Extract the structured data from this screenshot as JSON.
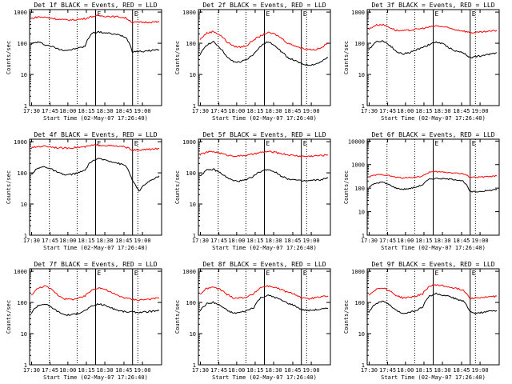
{
  "chart_data": [
    {
      "type": "line",
      "title": "Det 1f BLACK = Events, RED = LLD",
      "ylabel": "Counts/sec",
      "xlabel": "Start Time (02-May-07 17:26:40)",
      "x_tick_labels": [
        "17:30",
        "17:45",
        "18:00",
        "18:15",
        "18:30",
        "18:45",
        "19:00"
      ],
      "y_tick_labels": [
        "1",
        "10",
        "100",
        "1000"
      ],
      "ylim": [
        1,
        1200
      ],
      "y_scale": "log",
      "marker_labels": [
        "E",
        "E"
      ],
      "series": [
        {
          "color": "#000000",
          "values": [
            95,
            110,
            90,
            80,
            65,
            60,
            62,
            70,
            80,
            210,
            230,
            215,
            200,
            185,
            160,
            55,
            55,
            55,
            60,
            62
          ]
        },
        {
          "color": "#ff0000",
          "values": [
            620,
            700,
            680,
            640,
            590,
            560,
            560,
            580,
            620,
            720,
            760,
            740,
            720,
            700,
            650,
            470,
            470,
            470,
            480,
            480
          ]
        }
      ]
    },
    {
      "type": "line",
      "title": "Det 2f BLACK = Events, RED = LLD",
      "ylabel": "Counts/sec",
      "xlabel": "Start Time (02-May-07 17:26:40)",
      "x_tick_labels": [
        "17:30",
        "17:45",
        "18:00",
        "18:15",
        "18:30",
        "18:45",
        "19:00"
      ],
      "y_tick_labels": [
        "1",
        "10",
        "100",
        "1000"
      ],
      "ylim": [
        1,
        1200
      ],
      "y_scale": "log",
      "marker_labels": [
        "E",
        "E"
      ],
      "series": [
        {
          "color": "#000000",
          "values": [
            40,
            90,
            110,
            70,
            35,
            25,
            25,
            30,
            45,
            80,
            110,
            90,
            55,
            35,
            28,
            22,
            20,
            21,
            25,
            35
          ]
        },
        {
          "color": "#ff0000",
          "values": [
            130,
            210,
            240,
            180,
            110,
            80,
            75,
            85,
            130,
            170,
            220,
            200,
            150,
            100,
            85,
            70,
            65,
            62,
            70,
            100
          ]
        }
      ]
    },
    {
      "type": "line",
      "title": "Det 3f BLACK = Events, RED = LLD",
      "ylabel": "Counts/sec",
      "xlabel": "Start Time (02-May-07 17:26:40)",
      "x_tick_labels": [
        "17:30",
        "17:45",
        "18:00",
        "18:15",
        "18:30",
        "18:45",
        "19:00"
      ],
      "y_tick_labels": [
        "1",
        "10",
        "100",
        "1000"
      ],
      "ylim": [
        1,
        1200
      ],
      "y_scale": "log",
      "marker_labels": [
        "E",
        "E"
      ],
      "series": [
        {
          "color": "#000000",
          "values": [
            60,
            110,
            120,
            90,
            55,
            45,
            50,
            60,
            75,
            90,
            110,
            95,
            70,
            55,
            50,
            35,
            38,
            40,
            45,
            50
          ]
        },
        {
          "color": "#ff0000",
          "values": [
            280,
            380,
            400,
            330,
            260,
            250,
            260,
            280,
            300,
            330,
            360,
            340,
            300,
            270,
            250,
            220,
            220,
            230,
            240,
            260
          ]
        }
      ]
    },
    {
      "type": "line",
      "title": "Det 4f BLACK = Events, RED = LLD",
      "ylabel": "Counts/sec",
      "xlabel": "Start Time (02-May-07 17:26:40)",
      "x_tick_labels": [
        "17:30",
        "17:45",
        "18:00",
        "18:15",
        "18:30",
        "18:45",
        "19:00"
      ],
      "y_tick_labels": [
        "1",
        "10",
        "100",
        "1000"
      ],
      "ylim": [
        1,
        1200
      ],
      "y_scale": "log",
      "marker_labels": [
        "E",
        "E"
      ],
      "series": [
        {
          "color": "#000000",
          "values": [
            90,
            140,
            160,
            130,
            100,
            85,
            90,
            100,
            120,
            240,
            280,
            260,
            230,
            200,
            170,
            55,
            25,
            45,
            60,
            80
          ]
        },
        {
          "color": "#ff0000",
          "values": [
            620,
            700,
            720,
            680,
            640,
            620,
            640,
            660,
            680,
            760,
            780,
            760,
            730,
            700,
            680,
            540,
            530,
            560,
            580,
            600
          ]
        }
      ]
    },
    {
      "type": "line",
      "title": "Det 5f BLACK = Events, RED = LLD",
      "ylabel": "Counts/sec",
      "xlabel": "Start Time (02-May-07 17:26:40)",
      "x_tick_labels": [
        "17:30",
        "17:45",
        "18:00",
        "18:15",
        "18:30",
        "18:45",
        "19:00"
      ],
      "y_tick_labels": [
        "1",
        "10",
        "100",
        "1000"
      ],
      "ylim": [
        1,
        1200
      ],
      "y_scale": "log",
      "marker_labels": [
        "E",
        "E"
      ],
      "series": [
        {
          "color": "#000000",
          "values": [
            80,
            120,
            130,
            100,
            70,
            55,
            55,
            60,
            80,
            110,
            130,
            110,
            80,
            65,
            60,
            55,
            55,
            58,
            60,
            70
          ]
        },
        {
          "color": "#ff0000",
          "values": [
            380,
            460,
            480,
            430,
            370,
            350,
            350,
            370,
            400,
            450,
            480,
            460,
            420,
            380,
            360,
            340,
            340,
            350,
            360,
            380
          ]
        }
      ]
    },
    {
      "type": "line",
      "title": "Det 6f BLACK = Events, RED = LLD",
      "ylabel": "Counts/sec",
      "xlabel": "Start Time (02-May-07 17:26:40)",
      "x_tick_labels": [
        "17:30",
        "17:45",
        "18:00",
        "18:15",
        "18:30",
        "18:45",
        "19:00"
      ],
      "y_tick_labels": [
        "1",
        "10",
        "100",
        "1000",
        "10000"
      ],
      "ylim": [
        1,
        12000
      ],
      "y_scale": "log",
      "marker_labels": [
        "E",
        "E"
      ],
      "series": [
        {
          "color": "#000000",
          "values": [
            110,
            160,
            180,
            140,
            100,
            90,
            95,
            110,
            140,
            240,
            260,
            250,
            240,
            230,
            200,
            70,
            70,
            75,
            80,
            90
          ]
        },
        {
          "color": "#ff0000",
          "values": [
            300,
            360,
            380,
            340,
            290,
            270,
            280,
            300,
            320,
            480,
            500,
            480,
            460,
            440,
            400,
            300,
            290,
            300,
            310,
            330
          ]
        }
      ]
    },
    {
      "type": "line",
      "title": "Det 7f BLACK = Events, RED = LLD",
      "ylabel": "Counts/sec",
      "xlabel": "Start Time (02-May-07 17:26:40)",
      "x_tick_labels": [
        "17:30",
        "17:45",
        "18:00",
        "18:15",
        "18:30",
        "18:45",
        "19:00"
      ],
      "y_tick_labels": [
        "1",
        "10",
        "100",
        "1000"
      ],
      "ylim": [
        1,
        1200
      ],
      "y_scale": "log",
      "marker_labels": [
        "E",
        "E"
      ],
      "series": [
        {
          "color": "#000000",
          "values": [
            45,
            80,
            90,
            70,
            50,
            40,
            40,
            45,
            55,
            75,
            90,
            80,
            65,
            55,
            50,
            50,
            48,
            50,
            52,
            55
          ]
        },
        {
          "color": "#ff0000",
          "values": [
            170,
            280,
            340,
            260,
            170,
            130,
            125,
            135,
            160,
            250,
            300,
            260,
            200,
            160,
            140,
            125,
            120,
            125,
            130,
            140
          ]
        }
      ]
    },
    {
      "type": "line",
      "title": "Det 8f BLACK = Events, RED = LLD",
      "ylabel": "Counts/sec",
      "xlabel": "Start Time (02-May-07 17:26:40)",
      "x_tick_labels": [
        "17:30",
        "17:45",
        "18:00",
        "18:15",
        "18:30",
        "18:45",
        "19:00"
      ],
      "y_tick_labels": [
        "1",
        "10",
        "100",
        "1000"
      ],
      "ylim": [
        1,
        1200
      ],
      "y_scale": "log",
      "marker_labels": [
        "E",
        "E"
      ],
      "series": [
        {
          "color": "#000000",
          "values": [
            55,
            90,
            100,
            80,
            55,
            45,
            48,
            55,
            70,
            140,
            170,
            150,
            120,
            95,
            80,
            60,
            55,
            58,
            60,
            65
          ]
        },
        {
          "color": "#ff0000",
          "values": [
            180,
            280,
            310,
            260,
            180,
            140,
            140,
            150,
            190,
            300,
            340,
            310,
            260,
            210,
            190,
            140,
            130,
            140,
            150,
            160
          ]
        }
      ]
    },
    {
      "type": "line",
      "title": "Det 9f BLACK = Events, RED = LLD",
      "ylabel": "Counts/sec",
      "xlabel": "Start Time (02-May-07 17:26:40)",
      "x_tick_labels": [
        "17:30",
        "17:45",
        "18:00",
        "18:15",
        "18:30",
        "18:45",
        "19:00"
      ],
      "y_tick_labels": [
        "1",
        "10",
        "100",
        "1000"
      ],
      "ylim": [
        1,
        1200
      ],
      "y_scale": "log",
      "marker_labels": [
        "E",
        "E"
      ],
      "series": [
        {
          "color": "#000000",
          "values": [
            50,
            90,
            110,
            85,
            55,
            45,
            48,
            55,
            70,
            160,
            190,
            170,
            150,
            130,
            110,
            50,
            45,
            48,
            52,
            55
          ]
        },
        {
          "color": "#ff0000",
          "values": [
            170,
            260,
            300,
            240,
            170,
            140,
            145,
            160,
            190,
            330,
            370,
            340,
            310,
            280,
            250,
            140,
            140,
            145,
            150,
            160
          ]
        }
      ]
    }
  ]
}
